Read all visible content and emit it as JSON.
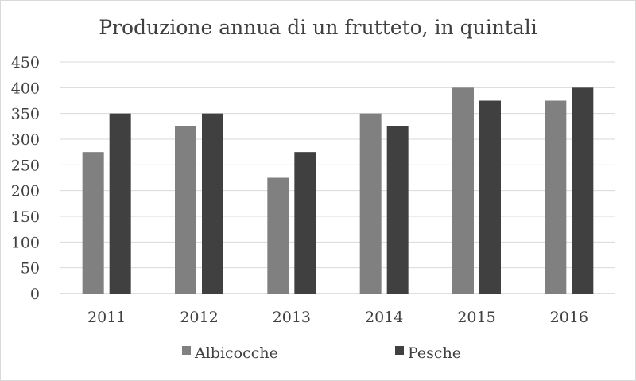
{
  "chart_data": {
    "type": "bar",
    "title": "Produzione annua di un frutteto, in quintali",
    "xlabel": "",
    "ylabel": "",
    "categories": [
      "2011",
      "2012",
      "2013",
      "2014",
      "2015",
      "2016"
    ],
    "series": [
      {
        "name": "Albicocche",
        "values": [
          275,
          325,
          225,
          350,
          400,
          375
        ],
        "color": "#808080"
      },
      {
        "name": "Pesche",
        "values": [
          350,
          350,
          275,
          325,
          375,
          400
        ],
        "color": "#404040"
      }
    ],
    "ylim": [
      0,
      450
    ],
    "yticks": [
      "0",
      "50",
      "100",
      "150",
      "200",
      "250",
      "300",
      "350",
      "400",
      "450"
    ],
    "grid": true,
    "legend_position": "bottom"
  }
}
